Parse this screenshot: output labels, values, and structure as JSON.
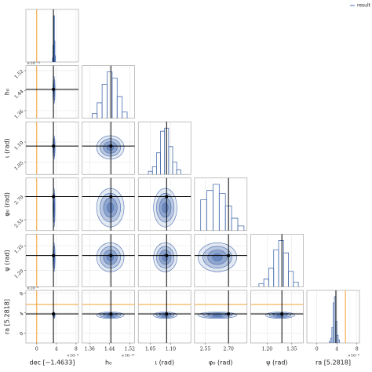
{
  "chart_data": {
    "type": "corner",
    "legend": "result",
    "color": "#4a6fb0",
    "truth_color": "#000000",
    "injection_color": "#f0a030",
    "grid": true,
    "parameters": [
      {
        "label": "dec [−1.4633]",
        "multiplier": "×10⁻⁵",
        "xlim": [
          -2.2,
          8.5
        ],
        "ticks": [
          0,
          4,
          8
        ],
        "bins": [
          3.2,
          3.3,
          3.4,
          3.5,
          3.6,
          3.7,
          3.8
        ],
        "counts": [
          2,
          8,
          20,
          22,
          10,
          3
        ],
        "truth": 3.4,
        "injection": 0
      },
      {
        "label": "h₀",
        "multiplier": "×10⁻²¹",
        "xlim": [
          1.33,
          1.54
        ],
        "ticks": [
          1.36,
          1.44,
          1.52
        ],
        "bins": [
          1.37,
          1.39,
          1.41,
          1.43,
          1.45,
          1.47,
          1.49,
          1.51
        ],
        "counts": [
          3,
          10,
          22,
          30,
          26,
          14,
          4
        ],
        "truth": 1.445,
        "injection": null
      },
      {
        "label": "ι (rad)",
        "multiplier": null,
        "xlim": [
          1.02,
          1.15
        ],
        "ticks": [
          1.05,
          {
            "value": 1.1,
            "label": "1.10"
          }
        ],
        "bins": [
          1.045,
          1.055,
          1.065,
          1.075,
          1.085,
          1.095,
          1.105,
          1.115,
          1.125
        ],
        "counts": [
          2,
          5,
          14,
          28,
          30,
          18,
          8,
          3
        ],
        "truth": 1.09,
        "injection": null
      },
      {
        "label": "φ₀ (rad)",
        "multiplier": null,
        "xlim": [
          2.48,
          2.82
        ],
        "ticks": [
          2.55,
          {
            "value": 2.7,
            "label": "2.70"
          }
        ],
        "bins": [
          2.52,
          2.56,
          2.6,
          2.64,
          2.68,
          2.72,
          2.76,
          2.8
        ],
        "counts": [
          20,
          26,
          30,
          24,
          16,
          8,
          3
        ],
        "truth": 2.7,
        "injection": null
      },
      {
        "label": "ψ (rad)",
        "multiplier": null,
        "xlim": [
          1.1,
          1.42
        ],
        "ticks": [
          {
            "value": 1.2,
            "label": "1.20"
          },
          1.35
        ],
        "bins": [
          1.15,
          1.18,
          1.21,
          1.24,
          1.27,
          1.3,
          1.33,
          1.36,
          1.39
        ],
        "counts": [
          2,
          5,
          12,
          24,
          30,
          22,
          10,
          3
        ],
        "truth": 1.29,
        "injection": null
      },
      {
        "label": "ra [5.2818]",
        "multiplier": "×10⁻⁵",
        "xlim": [
          -2,
          8.5
        ],
        "ticks": [
          0,
          4,
          8
        ],
        "bins": [
          2.5,
          2.75,
          3,
          3.25,
          3.5,
          3.75,
          4,
          4.25,
          4.5
        ],
        "counts": [
          1,
          3,
          10,
          26,
          30,
          14,
          5,
          2
        ],
        "truth": 3.8,
        "injection": 5.7
      }
    ]
  }
}
